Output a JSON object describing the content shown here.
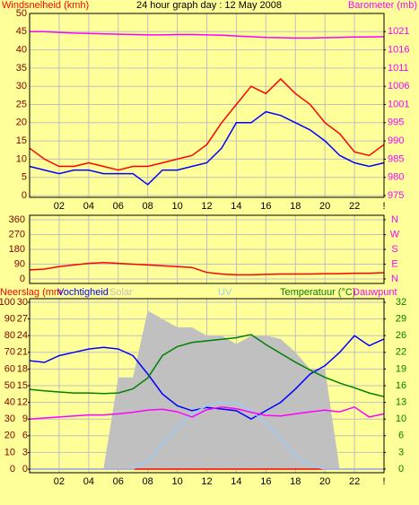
{
  "chart_data": [
    {
      "type": "line",
      "title": "24 hour graph day : 12 May 2008",
      "y_label": "Windsnelheid (kmh)",
      "y2_label": "Barometer (mb)",
      "x": [
        0,
        1,
        2,
        3,
        4,
        5,
        6,
        7,
        8,
        9,
        10,
        11,
        12,
        13,
        14,
        15,
        16,
        17,
        18,
        19,
        20,
        21,
        22,
        23,
        24
      ],
      "xlim": [
        0,
        24
      ],
      "xticks": [
        {
          "value": 2,
          "label": "02"
        },
        {
          "value": 4,
          "label": "04"
        },
        {
          "value": 6,
          "label": "06"
        },
        {
          "value": 8,
          "label": "08"
        },
        10,
        12,
        14,
        16,
        18,
        20,
        22,
        {
          "value": 24,
          "label": "!"
        }
      ],
      "ylim": [
        0,
        50
      ],
      "yticks": [
        0,
        5,
        10,
        15,
        20,
        25,
        30,
        35,
        40,
        45,
        50
      ],
      "y2lim": [
        975,
        1026.11
      ],
      "y2ticks": [
        975,
        {
          "value": 980.11,
          "label": "980"
        },
        {
          "value": 985.22,
          "label": "985"
        },
        {
          "value": 990.33,
          "label": "990"
        },
        {
          "value": 995.44,
          "label": "995"
        },
        {
          "value": 1000.56,
          "label": "1001"
        },
        {
          "value": 1005.67,
          "label": "1006"
        },
        {
          "value": 1010.78,
          "label": "1011"
        },
        {
          "value": 1015.89,
          "label": "1016"
        },
        1021
      ],
      "grid": true,
      "series": [
        {
          "color": "#ff0000",
          "values": [
            13,
            10,
            8,
            8,
            9,
            8,
            7,
            8,
            8,
            9,
            10,
            11,
            14,
            20,
            25,
            30,
            28,
            32,
            28,
            25,
            20,
            17,
            12,
            11,
            14
          ]
        },
        {
          "color": "#0000ff",
          "values": [
            8,
            7,
            6,
            7,
            7,
            6,
            6,
            6,
            3,
            7,
            7,
            8,
            9,
            13,
            20,
            20,
            23,
            22,
            20,
            18,
            15,
            11,
            9,
            8,
            9
          ]
        },
        {
          "color": "#ff00ff",
          "axis": "y2",
          "values": [
            1021,
            1021,
            1020.8,
            1020.6,
            1020.5,
            1020.4,
            1020.3,
            1020.2,
            1020.1,
            1020.1,
            1020.2,
            1020.2,
            1020.1,
            1020,
            1019.8,
            1019.6,
            1019.4,
            1019.3,
            1019.2,
            1019.2,
            1019.3,
            1019.4,
            1019.5,
            1019.5,
            1019.6
          ]
        }
      ]
    },
    {
      "type": "line",
      "x": [
        0,
        1,
        2,
        3,
        4,
        5,
        6,
        7,
        8,
        9,
        10,
        11,
        12,
        13,
        14,
        15,
        16,
        17,
        18,
        19,
        20,
        21,
        22,
        23,
        24
      ],
      "xlim": [
        0,
        24
      ],
      "ylim": [
        0,
        360
      ],
      "yticks": [
        0,
        90,
        180,
        270,
        360
      ],
      "y2lim": [
        0,
        360
      ],
      "y2ticks": [
        {
          "value": 0,
          "label": "N"
        },
        {
          "value": 90,
          "label": "E"
        },
        {
          "value": 180,
          "label": "S"
        },
        {
          "value": 270,
          "label": "W"
        },
        {
          "value": 360,
          "label": "N"
        }
      ],
      "grid": true,
      "series": [
        {
          "color": "#ff0000",
          "values": [
            55,
            60,
            75,
            85,
            95,
            100,
            95,
            90,
            85,
            80,
            75,
            70,
            40,
            30,
            25,
            25,
            28,
            30,
            30,
            30,
            32,
            32,
            35,
            35,
            38
          ]
        }
      ]
    },
    {
      "type": "line",
      "x": [
        0,
        1,
        2,
        3,
        4,
        5,
        6,
        7,
        8,
        9,
        10,
        11,
        12,
        13,
        14,
        15,
        16,
        17,
        18,
        19,
        20,
        21,
        22,
        23,
        24
      ],
      "xlim": [
        0,
        24
      ],
      "xticks": [
        {
          "value": 2,
          "label": "02"
        },
        {
          "value": 4,
          "label": "04"
        },
        {
          "value": 6,
          "label": "06"
        },
        {
          "value": 8,
          "label": "08"
        },
        10,
        12,
        14,
        16,
        18,
        20,
        22,
        {
          "value": 24,
          "label": "!"
        }
      ],
      "ylim": [
        0,
        100
      ],
      "yticks": [
        0,
        10,
        20,
        30,
        40,
        50,
        60,
        70,
        80,
        90,
        100
      ],
      "y3lim": [
        0,
        30
      ],
      "y3ticks": [
        0,
        3,
        6,
        9,
        12,
        15,
        18,
        21,
        24,
        27,
        30
      ],
      "y2lim": [
        0,
        32
      ],
      "y2ticks": [
        0,
        {
          "value": 3.2,
          "label": "3"
        },
        {
          "value": 6.4,
          "label": "6"
        },
        {
          "value": 9.6,
          "label": "10"
        },
        {
          "value": 12.8,
          "label": "13"
        },
        16,
        {
          "value": 19.2,
          "label": "19"
        },
        {
          "value": 22.4,
          "label": "22"
        },
        {
          "value": 25.6,
          "label": "26"
        },
        {
          "value": 28.8,
          "label": "29"
        },
        32
      ],
      "grid": true,
      "series": [
        {
          "name": "Neerslag (mm",
          "color": "#ff0000",
          "axis": "y3",
          "values": [
            0,
            0,
            0,
            0,
            0,
            0,
            0,
            0,
            0,
            0,
            0,
            0,
            0,
            0,
            0,
            0,
            0,
            0,
            0,
            0,
            0,
            0,
            0,
            0,
            0
          ]
        },
        {
          "name": "Vochtigheid",
          "color": "#0000ff",
          "values": [
            65,
            64,
            68,
            70,
            72,
            73,
            72,
            68,
            57,
            45,
            38,
            35,
            37,
            36,
            35,
            30,
            35,
            40,
            48,
            57,
            62,
            70,
            80,
            74,
            78
          ]
        },
        {
          "name": "Solar",
          "color": "#c0c0c0",
          "style": "area",
          "values": [
            0,
            0,
            0,
            0,
            0,
            0,
            55,
            55,
            95,
            90,
            85,
            85,
            80,
            80,
            75,
            80,
            80,
            78,
            70,
            60,
            60,
            0,
            0,
            0,
            0
          ]
        },
        {
          "name": "UV",
          "color": "#99ccff",
          "values": [
            0,
            0,
            0,
            0,
            0,
            0,
            0,
            0,
            5,
            15,
            25,
            33,
            38,
            40,
            40,
            35,
            28,
            18,
            8,
            2,
            0,
            0,
            0,
            0,
            0
          ]
        },
        {
          "name": "Temperatuur (°C)",
          "color": "#008000",
          "axis": "y2",
          "values": [
            15.3,
            15,
            14.8,
            14.6,
            14.6,
            14.5,
            14.6,
            15.4,
            17.5,
            21.8,
            23.5,
            24.3,
            24.6,
            24.9,
            25.2,
            25.8,
            23.9,
            22.2,
            20.5,
            19,
            17.6,
            16.5,
            15.6,
            14.6,
            13.9
          ]
        },
        {
          "name": "Dauwpunt",
          "color": "#ff00ff",
          "axis": "y2",
          "values": [
            9.6,
            9.8,
            10,
            10.2,
            10.4,
            10.4,
            10.6,
            10.9,
            11.3,
            11.5,
            11,
            10,
            11.4,
            11.9,
            11.6,
            10.9,
            10.3,
            10.2,
            10.6,
            11,
            11.3,
            11,
            11.9,
            10,
            10.6
          ]
        }
      ]
    }
  ]
}
